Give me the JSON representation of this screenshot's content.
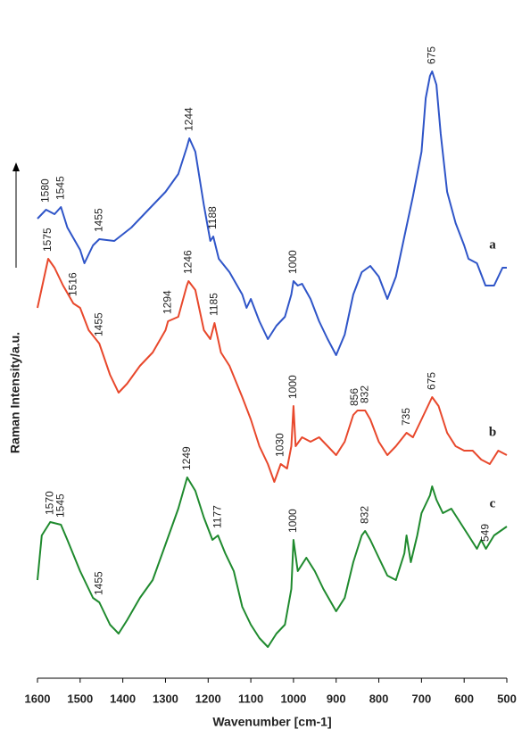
{
  "chart_data": {
    "type": "line",
    "xlabel": "Wavenumber [cm-1]",
    "ylabel": "Raman Intensity/a.u.",
    "xlim": [
      1600,
      500
    ],
    "xticks": [
      1600,
      1500,
      1400,
      1300,
      1200,
      1100,
      1000,
      900,
      800,
      700,
      600,
      500
    ],
    "ylim": [
      0,
      76
    ],
    "series": [
      {
        "name": "a",
        "color": "#2f55c8",
        "x": [
          1600,
          1580,
          1560,
          1545,
          1530,
          1500,
          1490,
          1470,
          1455,
          1420,
          1380,
          1340,
          1300,
          1270,
          1250,
          1244,
          1230,
          1210,
          1195,
          1188,
          1175,
          1150,
          1120,
          1110,
          1100,
          1080,
          1060,
          1040,
          1020,
          1005,
          1000,
          990,
          980,
          960,
          940,
          920,
          900,
          880,
          860,
          840,
          820,
          800,
          780,
          760,
          740,
          720,
          700,
          690,
          680,
          675,
          665,
          655,
          640,
          620,
          600,
          590,
          570,
          550,
          530,
          510,
          500
        ],
        "values": [
          51.5,
          52.5,
          52,
          52.8,
          50.5,
          48,
          46.5,
          48.5,
          49.2,
          49,
          50.5,
          52.5,
          54.5,
          56.5,
          59.5,
          60.5,
          59,
          53,
          49,
          49.5,
          47,
          45.5,
          43,
          41.5,
          42.5,
          40,
          38,
          39.5,
          40.5,
          43,
          44.5,
          44,
          44.2,
          42.5,
          40,
          38,
          36.2,
          38.5,
          43,
          45.5,
          46.2,
          45,
          42.5,
          45,
          49.5,
          54,
          59,
          65,
          67.5,
          68,
          66.5,
          61,
          54.5,
          51,
          48.5,
          47,
          46.5,
          44,
          44,
          46,
          46
        ],
        "peak_labels": [
          1580,
          1545,
          1455,
          1244,
          1188,
          1000,
          675
        ]
      },
      {
        "name": "b",
        "color": "#e8482c",
        "x": [
          1600,
          1575,
          1560,
          1540,
          1516,
          1500,
          1480,
          1455,
          1430,
          1410,
          1390,
          1360,
          1330,
          1300,
          1294,
          1270,
          1250,
          1246,
          1230,
          1210,
          1195,
          1185,
          1170,
          1150,
          1120,
          1100,
          1080,
          1060,
          1045,
          1030,
          1015,
          1005,
          1000,
          995,
          980,
          960,
          940,
          920,
          900,
          880,
          860,
          850,
          832,
          820,
          800,
          780,
          760,
          735,
          720,
          700,
          680,
          675,
          660,
          640,
          620,
          600,
          580,
          560,
          540,
          520,
          500
        ],
        "values": [
          41.5,
          47,
          46,
          44,
          42,
          41.5,
          39,
          37.5,
          34,
          32,
          33,
          35,
          36.5,
          39,
          40,
          40.5,
          44,
          44.5,
          43.5,
          39,
          38,
          39.8,
          36.5,
          35,
          31.5,
          29,
          26,
          24,
          22,
          24,
          23.5,
          26,
          30.5,
          26,
          27,
          26.5,
          27,
          26,
          25,
          26.5,
          29.5,
          30,
          30,
          29,
          26.5,
          25,
          26,
          27.5,
          27,
          29,
          31,
          31.5,
          30.5,
          27.5,
          26,
          25.5,
          25.5,
          24.5,
          24,
          25.5,
          25
        ],
        "peak_labels": [
          1575,
          1516,
          1455,
          1294,
          1246,
          1185,
          1030,
          1000,
          856,
          832,
          735,
          675
        ]
      },
      {
        "name": "c",
        "color": "#1f8a2e",
        "x": [
          1600,
          1590,
          1570,
          1545,
          1530,
          1500,
          1470,
          1455,
          1430,
          1410,
          1390,
          1360,
          1330,
          1300,
          1270,
          1249,
          1230,
          1210,
          1190,
          1177,
          1160,
          1140,
          1120,
          1100,
          1080,
          1060,
          1040,
          1020,
          1005,
          1000,
          990,
          970,
          950,
          930,
          900,
          880,
          860,
          840,
          832,
          820,
          800,
          780,
          760,
          740,
          735,
          725,
          710,
          700,
          680,
          675,
          665,
          650,
          630,
          610,
          590,
          570,
          560,
          549,
          530,
          500
        ],
        "values": [
          11,
          16,
          17.5,
          17.2,
          15.5,
          12,
          9,
          8.5,
          6,
          5,
          6.5,
          9,
          11,
          15,
          19,
          22.5,
          21,
          18,
          15.5,
          16,
          14,
          12,
          8,
          6,
          4.5,
          3.5,
          5,
          6,
          10,
          15.5,
          12,
          13.5,
          12,
          10,
          7.5,
          9,
          13,
          16,
          16.5,
          15.5,
          13.5,
          11.5,
          11,
          14,
          16,
          13,
          16,
          18.5,
          20.5,
          21.5,
          20,
          18.5,
          19,
          17.5,
          16,
          14.5,
          15.5,
          14.5,
          16,
          17
        ],
        "peak_labels": [
          1570,
          1545,
          1455,
          1249,
          1177,
          1000,
          832,
          549
        ]
      }
    ]
  }
}
